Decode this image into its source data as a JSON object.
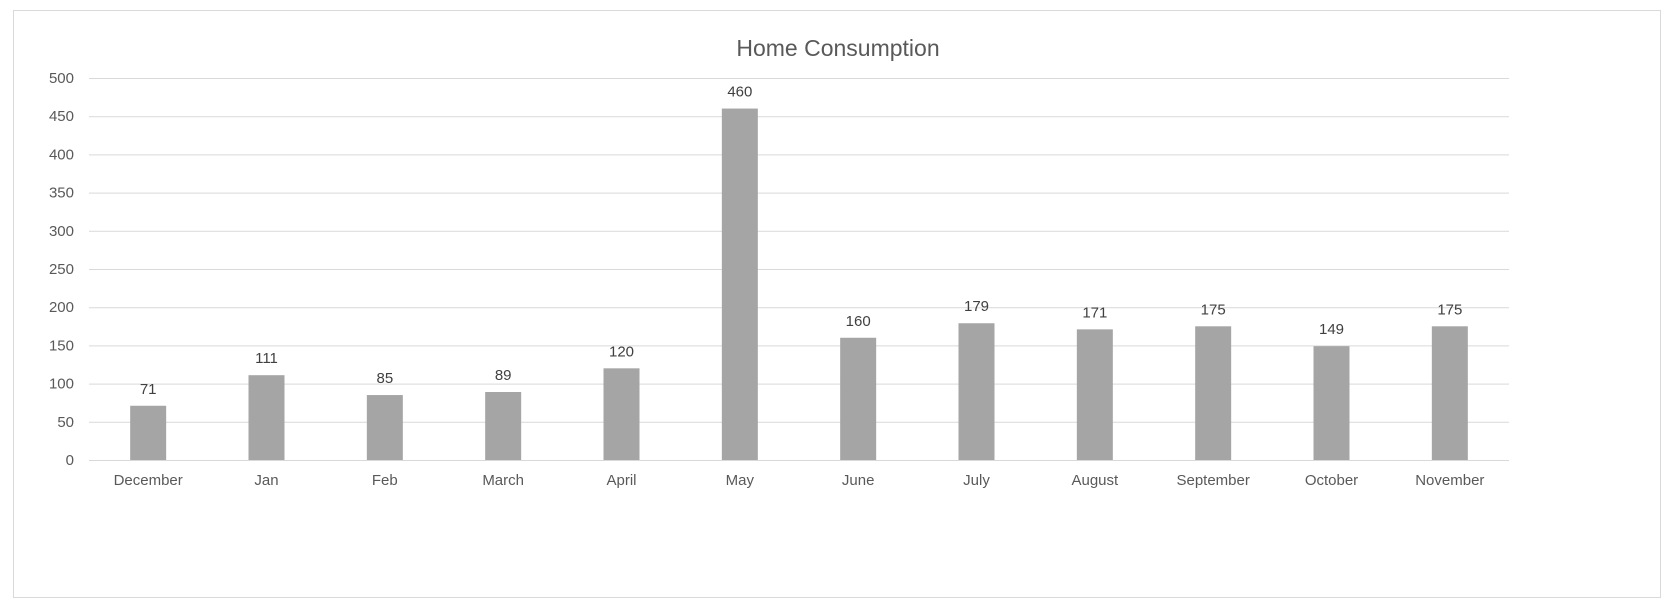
{
  "chart_data": {
    "type": "bar",
    "title": "Home Consumption",
    "xlabel": "",
    "ylabel": "",
    "categories": [
      "December",
      "Jan",
      "Feb",
      "March",
      "April",
      "May",
      "June",
      "July",
      "August",
      "September",
      "October",
      "November"
    ],
    "values": [
      71,
      111,
      85,
      89,
      120,
      460,
      160,
      179,
      171,
      175,
      149,
      175
    ],
    "ylim": [
      0,
      500
    ],
    "yticks": [
      0,
      50,
      100,
      150,
      200,
      250,
      300,
      350,
      400,
      450,
      500
    ],
    "grid": true,
    "legend": "none",
    "data_labels": true,
    "bar_color": "#a5a5a5",
    "grid_color": "#d9d9d9"
  }
}
